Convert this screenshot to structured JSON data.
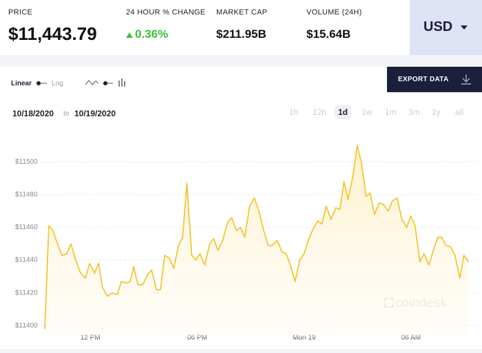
{
  "header": {
    "price_label": "PRICE",
    "price": "$11,443.79",
    "change_label": "24 HOUR % CHANGE",
    "change": "0.36%",
    "cap_label": "MARKET CAP",
    "cap": "$211.95B",
    "volume_label": "VOLUME (24H)",
    "volume": "$15.64B",
    "currency": "USD"
  },
  "controls": {
    "linear": "Linear",
    "log": "Log",
    "export": "EXPORT DATA",
    "date_from": "10/18/2020",
    "date_to_word": "to",
    "date_to": "10/19/2020",
    "ranges": [
      "1h",
      "12h",
      "1d",
      "1w",
      "1m",
      "3m",
      "1y",
      "all"
    ],
    "active_range": "1d",
    "watermark": "coindesk"
  },
  "chart_data": {
    "type": "line",
    "color": "#f5c533",
    "grid": true,
    "x": [
      9.44,
      9.67,
      9.9,
      10.18,
      10.41,
      10.68,
      10.91,
      11.18,
      11.45,
      11.72,
      11.96,
      12.23,
      12.46,
      12.69,
      12.96,
      13.23,
      13.51,
      13.74,
      14.01,
      14.24,
      14.43,
      14.67,
      14.94,
      15.21,
      15.44,
      15.71,
      15.94,
      16.18,
      16.45,
      16.68,
      16.95,
      17.18,
      17.42,
      17.69,
      17.92,
      18.15,
      18.42,
      18.7,
      18.93,
      19.16,
      19.43,
      19.7,
      19.93,
      20.2,
      20.43,
      20.67,
      20.94,
      21.21,
      21.48,
      21.71,
      21.98,
      22.21,
      22.49,
      22.76,
      22.99,
      23.26,
      23.49,
      23.76,
      24.0,
      24.27,
      24.5,
      24.77,
      25.0,
      25.24,
      25.51,
      25.78,
      26.01,
      26.24,
      26.47,
      26.75,
      26.98,
      27.21,
      27.48,
      27.71,
      27.95,
      28.22,
      28.45,
      28.72,
      28.95,
      29.22,
      29.49,
      29.76,
      29.99,
      30.23,
      30.5,
      30.73,
      31.0,
      31.23,
      31.5,
      31.73,
      31.96,
      32.23,
      32.47,
      32.74,
      32.97,
      33.24
    ],
    "values": [
      11398,
      11461,
      11458,
      11449,
      11443,
      11444,
      11450,
      11440,
      11432,
      11429,
      11438,
      11432,
      11438,
      11423,
      11418,
      11420,
      11419,
      11427,
      11426,
      11427,
      11436,
      11425,
      11425,
      11431,
      11434,
      11422,
      11422,
      11443,
      11441,
      11435,
      11449,
      11454,
      11487,
      11443,
      11440,
      11444,
      11437,
      11450,
      11453,
      11446,
      11452,
      11463,
      11466,
      11458,
      11460,
      11454,
      11473,
      11478,
      11469,
      11459,
      11449,
      11449,
      11452,
      11445,
      11444,
      11436,
      11427,
      11440,
      11444,
      11453,
      11459,
      11464,
      11462,
      11473,
      11465,
      11472,
      11471,
      11488,
      11477,
      11492,
      11510,
      11500,
      11479,
      11481,
      11468,
      11475,
      11474,
      11470,
      11476,
      11478,
      11465,
      11460,
      11467,
      11461,
      11439,
      11444,
      11437,
      11445,
      11454,
      11454,
      11449,
      11448,
      11443,
      11429,
      11443,
      11439
    ],
    "xlim": [
      9.17,
      33.6
    ],
    "ylim": [
      11393,
      11519
    ],
    "xticks": [
      {
        "value": 12,
        "label": "12 PM"
      },
      {
        "value": 18,
        "label": "06 PM"
      },
      {
        "value": 24,
        "label": "Mon 19"
      },
      {
        "value": 30,
        "label": "06 AM"
      }
    ],
    "yticks": [
      {
        "value": 11400,
        "label": "$11400"
      },
      {
        "value": 11420,
        "label": "$11420"
      },
      {
        "value": 11440,
        "label": "$11440"
      },
      {
        "value": 11460,
        "label": "$11460"
      },
      {
        "value": 11480,
        "label": "$11480"
      },
      {
        "value": 11500,
        "label": "$11500"
      }
    ]
  }
}
